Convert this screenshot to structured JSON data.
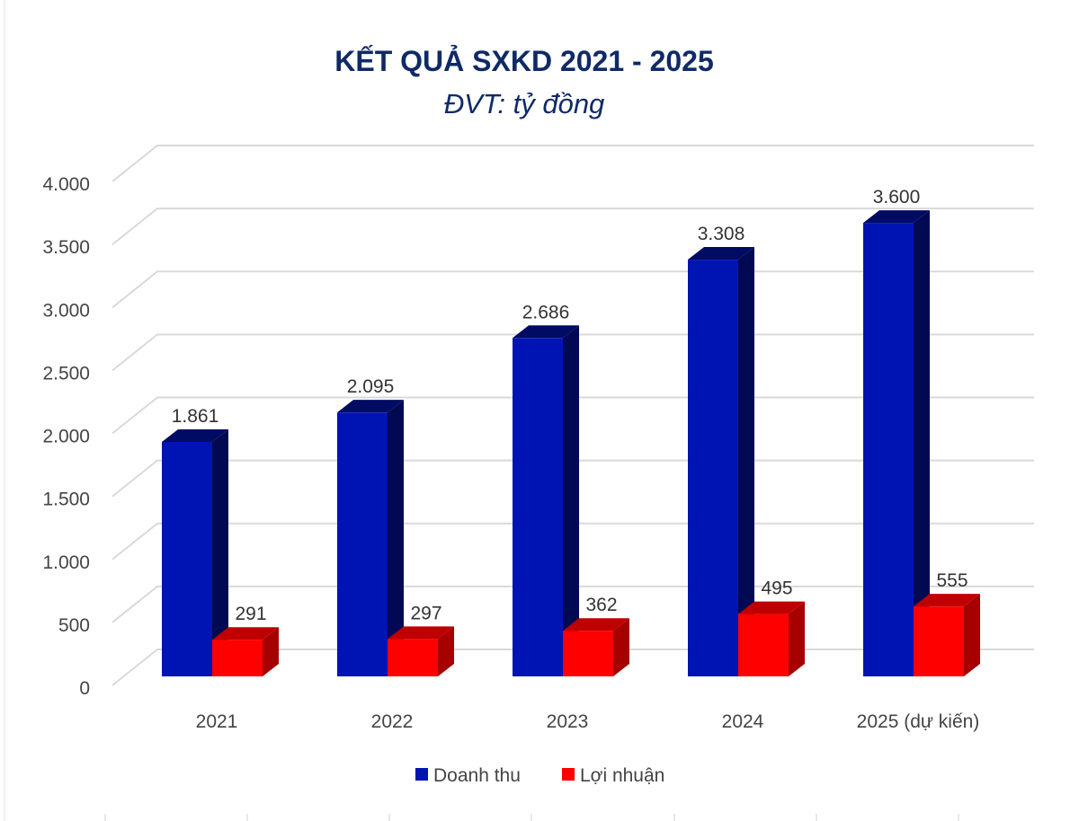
{
  "chart_data": {
    "type": "bar",
    "title": "KẾT QUẢ SXKD 2021 - 2025",
    "subtitle": "ĐVT: tỷ đồng",
    "categories": [
      "2021",
      "2022",
      "2023",
      "2024",
      "2025 (dự kiến)"
    ],
    "series": [
      {
        "name": "Doanh thu",
        "values": [
          1861,
          2095,
          2686,
          3308,
          3600
        ],
        "labels": [
          "1.861",
          "2.095",
          "2.686",
          "3.308",
          "3.600"
        ],
        "color": "#0014b4"
      },
      {
        "name": "Lợi nhuận",
        "values": [
          291,
          297,
          362,
          495,
          555
        ],
        "labels": [
          "291",
          "297",
          "362",
          "495",
          "555"
        ],
        "color": "#ff0000"
      }
    ],
    "ylim": [
      0,
      4000
    ],
    "yticks": [
      0,
      500,
      1000,
      1500,
      2000,
      2500,
      3000,
      3500,
      4000
    ],
    "ytick_labels": [
      "0",
      "500",
      "1.000",
      "1.500",
      "2.000",
      "2.500",
      "3.000",
      "3.500",
      "4.000"
    ],
    "grid": true,
    "legend": "bottom",
    "style": "3d-clustered-column"
  }
}
